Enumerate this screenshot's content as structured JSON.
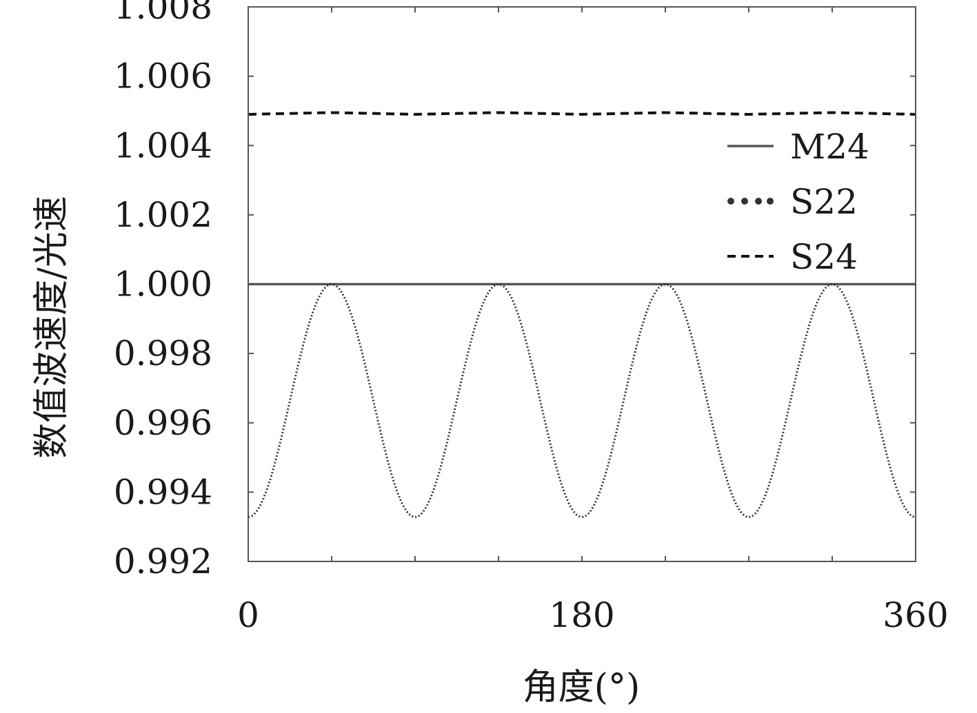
{
  "chart_data": {
    "type": "line",
    "title": "",
    "xlabel": "角度(°)",
    "ylabel": "数值波速度/光速",
    "xlim": [
      0,
      360
    ],
    "ylim": [
      0.992,
      1.008
    ],
    "x_ticks": [
      0,
      180,
      360
    ],
    "x_tick_labels": [
      "0",
      "180",
      "360"
    ],
    "x_minor_ticks": [
      45,
      90,
      135,
      225,
      270,
      315
    ],
    "y_ticks": [
      0.992,
      0.994,
      0.996,
      0.998,
      1.0,
      1.002,
      1.004,
      1.006,
      1.008
    ],
    "y_tick_labels": [
      "0.992",
      "0.994",
      "0.996",
      "0.998",
      "1.000",
      "1.002",
      "1.004",
      "1.006",
      "1.008"
    ],
    "grid": false,
    "legend_position": "top-right",
    "series": [
      {
        "name": "M24",
        "style": "solid",
        "color": "#555555",
        "x": [
          0,
          360
        ],
        "y": [
          1.0,
          1.0
        ]
      },
      {
        "name": "S22",
        "style": "dotted",
        "color": "#333333",
        "formula_note": "y = 0.99664 + 0.00336*cos(4*(x-45))",
        "x": [
          0,
          15,
          30,
          45,
          60,
          75,
          90,
          105,
          120,
          135,
          150,
          165,
          180,
          195,
          210,
          225,
          240,
          255,
          270,
          285,
          300,
          315,
          330,
          345,
          360
        ],
        "y": [
          0.99328,
          0.99496,
          0.99832,
          1.0,
          0.99832,
          0.99496,
          0.99328,
          0.99496,
          0.99832,
          1.0,
          0.99832,
          0.99496,
          0.99328,
          0.99496,
          0.99832,
          1.0,
          0.99832,
          0.99496,
          0.99328,
          0.99496,
          0.99832,
          1.0,
          0.99832,
          0.99496,
          0.99328
        ]
      },
      {
        "name": "S24",
        "style": "dashed",
        "color": "#111111",
        "x": [
          0,
          45,
          90,
          135,
          180,
          225,
          270,
          315,
          360
        ],
        "y": [
          1.0049,
          1.00495,
          1.0049,
          1.00495,
          1.0049,
          1.00495,
          1.0049,
          1.00495,
          1.0049
        ]
      }
    ]
  }
}
